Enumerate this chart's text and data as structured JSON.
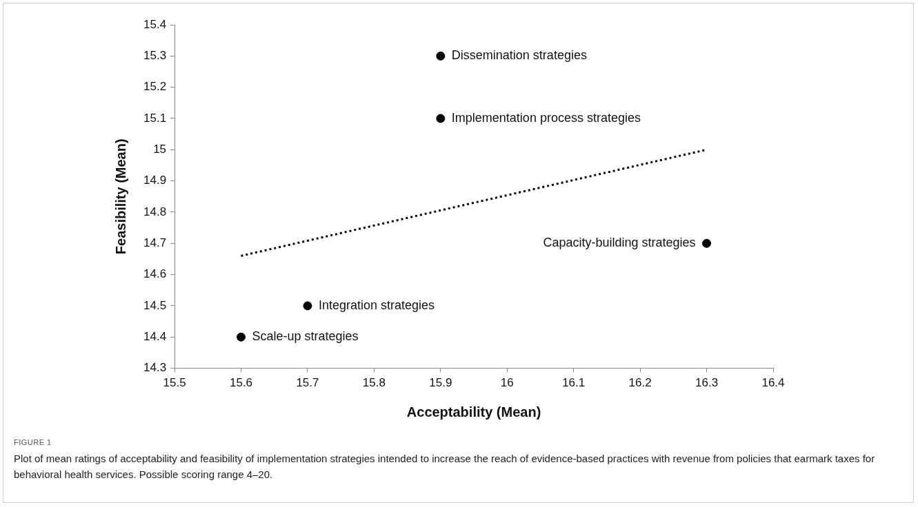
{
  "chart_data": {
    "type": "scatter",
    "xlabel": "Acceptability (Mean)",
    "ylabel": "Feasibility (Mean)",
    "series": [
      {
        "color": "#000000",
        "marker": "circle",
        "x": [
          15.6,
          15.7,
          15.9,
          15.9,
          16.3
        ],
        "values": [
          14.4,
          14.5,
          15.3,
          15.1,
          14.7
        ]
      },
      {
        "type": "line",
        "color": "#000000",
        "marker": "none",
        "line_style": "dotted",
        "x": [
          15.6,
          16.3
        ],
        "values": [
          14.66,
          15.0
        ]
      }
    ],
    "xlim": [
      15.5,
      16.4
    ],
    "xticks": [
      15.5,
      15.6,
      15.7,
      15.8,
      15.9,
      16,
      16.1,
      16.2,
      16.3,
      16.4
    ],
    "ylim": [
      14.3,
      15.4
    ],
    "yticks": [
      14.3,
      14.4,
      14.5,
      14.6,
      14.7,
      14.8,
      14.9,
      15,
      15.1,
      15.2,
      15.3,
      15.4
    ],
    "grid": false,
    "legend": false,
    "annotations": [
      {
        "text": "Scale-up strategies",
        "x": 15.6,
        "y": 14.4
      },
      {
        "text": "Integration strategies",
        "x": 15.7,
        "y": 14.5
      },
      {
        "text": "Dissemination strategies",
        "x": 15.9,
        "y": 15.3
      },
      {
        "text": "Implementation process strategies",
        "x": 15.9,
        "y": 15.1
      },
      {
        "text": "Capacity-building strategies",
        "x": 16.3,
        "y": 14.7
      },
      "FIGURE 1",
      "Plot of mean ratings of acceptability and feasibility of implementation strategies intended to increase the reach of evidence-based practices with revenue from policies that earmark taxes for behavioral health services. Possible scoring range 4–20."
    ]
  }
}
